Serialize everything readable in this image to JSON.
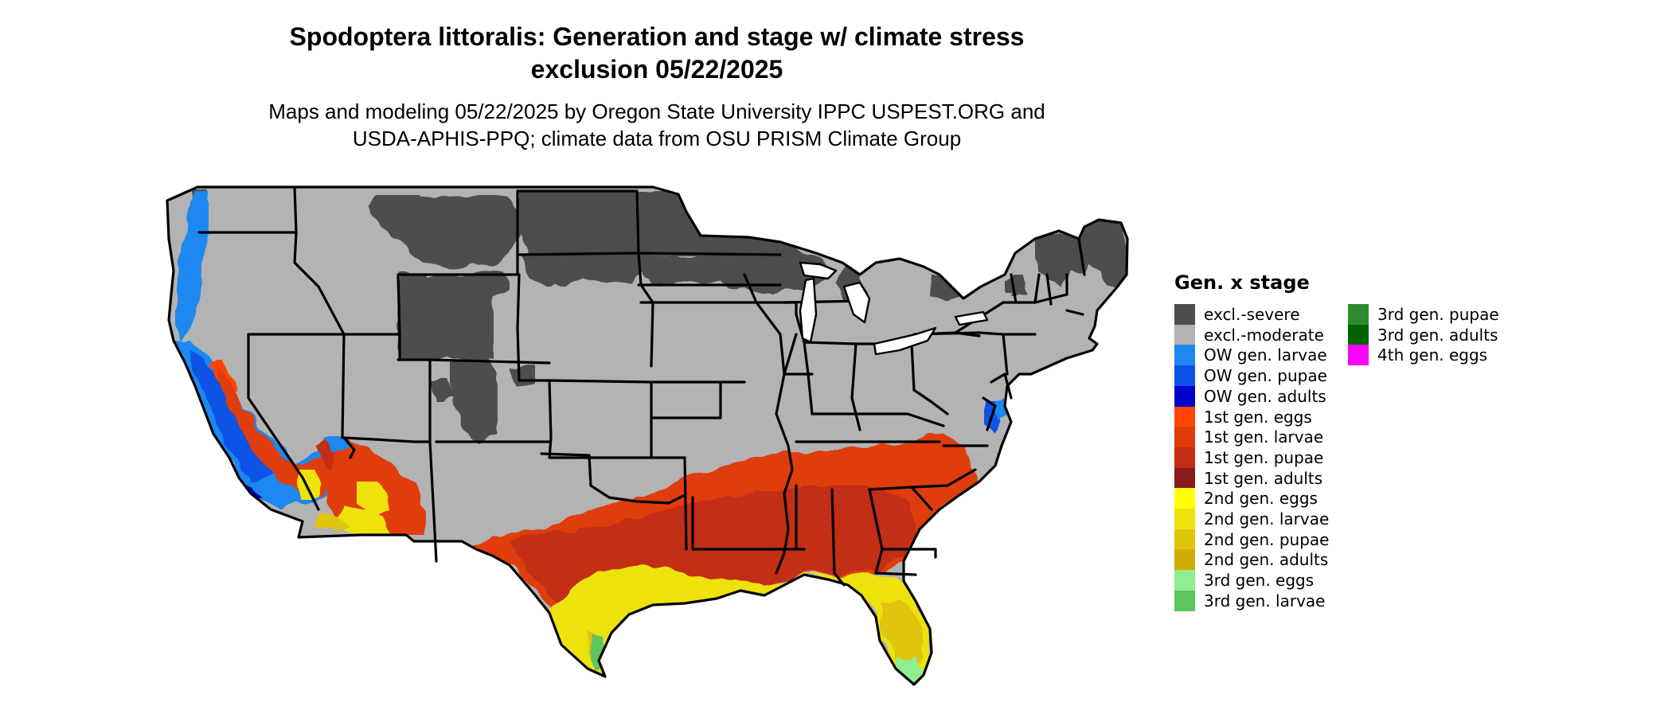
{
  "title": {
    "line1": "Spodoptera littoralis: Generation and stage w/ climate stress",
    "line2": "exclusion 05/22/2025"
  },
  "subtitle": {
    "line1": "Maps and modeling 05/22/2025 by Oregon State University IPPC USPEST.ORG and",
    "line2": "USDA-APHIS-PPQ; climate data from OSU PRISM Climate Group"
  },
  "legend": {
    "title": "Gen. x stage",
    "items": [
      {
        "label": "excl.-severe",
        "color": "#4d4d4d"
      },
      {
        "label": "excl.-moderate",
        "color": "#b3b3b3"
      },
      {
        "label": "OW gen. larvae",
        "color": "#1e88f0"
      },
      {
        "label": "OW gen. pupae",
        "color": "#0d52e6"
      },
      {
        "label": "OW gen. adults",
        "color": "#0000cd"
      },
      {
        "label": "1st gen. eggs",
        "color": "#ff4500"
      },
      {
        "label": "1st gen. larvae",
        "color": "#e03c0a"
      },
      {
        "label": "1st gen. pupae",
        "color": "#c22d13"
      },
      {
        "label": "1st gen. adults",
        "color": "#8b1a1a"
      },
      {
        "label": "2nd gen. eggs",
        "color": "#ffff00"
      },
      {
        "label": "2nd gen. larvae",
        "color": "#eee20a"
      },
      {
        "label": "2nd gen. pupae",
        "color": "#e0c40a"
      },
      {
        "label": "2nd gen. adults",
        "color": "#d1ad05"
      },
      {
        "label": "3rd gen. eggs",
        "color": "#90ee90"
      },
      {
        "label": "3rd gen. larvae",
        "color": "#5ec45e"
      },
      {
        "label": "3rd gen. pupae",
        "color": "#2e8b2e"
      },
      {
        "label": "3rd gen. adults",
        "color": "#006400"
      },
      {
        "label": "4th gen. eggs",
        "color": "#ff00ff"
      }
    ]
  },
  "palette": {
    "severe": "#4d4d4d",
    "moderate": "#b3b3b3",
    "ow_larvae": "#1e88f0",
    "ow_pupae": "#0d52e6",
    "ow_adults": "#0000cd",
    "g1_eggs": "#ff4500",
    "g1_larvae": "#e03c0a",
    "g1_pupae": "#c22d13",
    "g2_larvae": "#eee20a",
    "g2_pupae": "#e0c40a",
    "g3_eggs": "#90ee90",
    "g3_larvae": "#5ec45e",
    "g3_pupae": "#2e8b2e",
    "border": "#000000",
    "water": "#ffffff"
  }
}
